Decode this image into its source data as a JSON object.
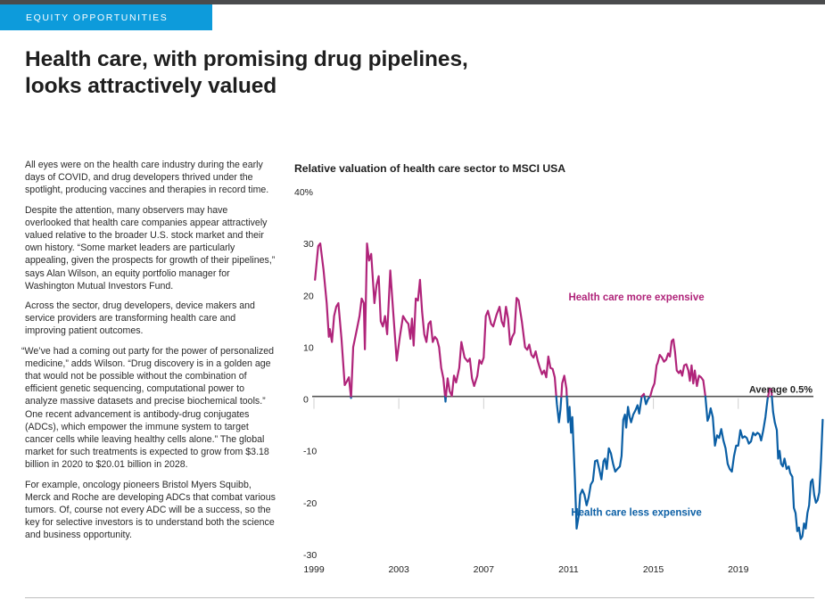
{
  "header": {
    "section_tag": "EQUITY OPPORTUNITIES",
    "headline_line1": "Health care, with promising drug pipelines,",
    "headline_line2": "looks attractively valued"
  },
  "article": {
    "paragraphs": [
      "All eyes were on the health care industry during the early days of COVID, and drug developers thrived under the spotlight, producing vaccines and therapies in record time.",
      "Despite the attention, many observers may have overlooked that health care companies appear attractively valued relative to the broader U.S. stock market and their own history. “Some market leaders are particularly appealing, given the prospects for growth of their pipelines,” says Alan Wilson, an equity portfolio manager for Washington Mutual Investors Fund.",
      "Across the sector, drug developers, device makers and service providers are transforming health care and improving patient outcomes.",
      "“We’ve had a coming out party for the power of personalized medicine,” adds Wilson. “Drug discovery is in a golden age that would not be possible without the combination of efficient genetic sequencing, computational power to analyze massive datasets and precise biochemical tools.” One recent advancement is antibody-drug conjugates (ADCs), which empower the immune system to target cancer cells while leaving healthy cells alone.” The global market for such treatments is expected to grow from $3.18 billion in 2020 to $20.01 billion in 2028.",
      "For example, oncology pioneers Bristol Myers Squibb, Merck and Roche are developing ADCs that combat various tumors. Of, course not every ADC will be a success, so the key for selective investors is to understand both the science and business opportunity."
    ]
  },
  "colors": {
    "section_tag_bg": "#0d9bdb",
    "above_average": "#b0247a",
    "below_average": "#0b5fa5",
    "average_line": "#555555"
  },
  "chart_data": {
    "type": "line",
    "title": "Relative valuation of health care sector to MSCI USA",
    "xlabel": "",
    "ylabel": "",
    "y_unit_label": "40%",
    "ylim": [
      -30,
      40
    ],
    "yticks": [
      40,
      30,
      20,
      10,
      0,
      -10,
      -20,
      -30
    ],
    "ytick_labels": [
      "40%",
      "30",
      "20",
      "10",
      "0",
      "-10",
      "-20",
      "-30"
    ],
    "xlim": [
      1999,
      2022.5
    ],
    "xticks": [
      1999,
      2003,
      2007,
      2011,
      2015,
      2019
    ],
    "xtick_labels": [
      "1999",
      "2003",
      "2007",
      "2011",
      "2015",
      "2019"
    ],
    "grid": false,
    "average": 0.5,
    "average_label": "Average 0.5%",
    "annotations": [
      {
        "text": "Health care more expensive",
        "x": 2014.2,
        "y": 19,
        "color_key": "above_average"
      },
      {
        "text": "Health care less expensive",
        "x": 2014.2,
        "y": -22.5,
        "color_key": "below_average"
      }
    ],
    "series": [
      {
        "name": "Relative valuation (%)",
        "points": [
          [
            1999.05,
            23
          ],
          [
            1999.2,
            29.5
          ],
          [
            1999.3,
            30
          ],
          [
            1999.45,
            25
          ],
          [
            1999.6,
            18.5
          ],
          [
            1999.7,
            12
          ],
          [
            1999.75,
            13.5
          ],
          [
            1999.85,
            11
          ],
          [
            1999.95,
            16
          ],
          [
            2000.05,
            17.8
          ],
          [
            2000.15,
            18.5
          ],
          [
            2000.3,
            11.6
          ],
          [
            2000.45,
            2.7
          ],
          [
            2000.55,
            3.4
          ],
          [
            2000.65,
            4.2
          ],
          [
            2000.75,
            0.2
          ],
          [
            2000.85,
            10
          ],
          [
            2001.0,
            13
          ],
          [
            2001.15,
            16
          ],
          [
            2001.25,
            19.4
          ],
          [
            2001.35,
            18.5
          ],
          [
            2001.4,
            9.6
          ],
          [
            2001.5,
            30
          ],
          [
            2001.6,
            26.7
          ],
          [
            2001.7,
            28
          ],
          [
            2001.85,
            18.5
          ],
          [
            2001.95,
            22
          ],
          [
            2002.05,
            23.7
          ],
          [
            2002.15,
            15
          ],
          [
            2002.25,
            14
          ],
          [
            2002.35,
            16
          ],
          [
            2002.45,
            12.5
          ],
          [
            2002.6,
            24.8
          ],
          [
            2002.75,
            16
          ],
          [
            2002.9,
            7.4
          ],
          [
            2003.05,
            12
          ],
          [
            2003.2,
            16
          ],
          [
            2003.35,
            15
          ],
          [
            2003.45,
            14.5
          ],
          [
            2003.55,
            11.6
          ],
          [
            2003.62,
            15.5
          ],
          [
            2003.7,
            10.3
          ],
          [
            2003.8,
            19.4
          ],
          [
            2003.9,
            19
          ],
          [
            2004.0,
            23
          ],
          [
            2004.1,
            16.8
          ],
          [
            2004.2,
            12.5
          ],
          [
            2004.3,
            11
          ],
          [
            2004.4,
            14.5
          ],
          [
            2004.5,
            15
          ],
          [
            2004.6,
            11
          ],
          [
            2004.7,
            12
          ],
          [
            2004.8,
            11.5
          ],
          [
            2004.9,
            10
          ],
          [
            2005.0,
            6
          ],
          [
            2005.1,
            4
          ],
          [
            2005.2,
            -0.5
          ],
          [
            2005.3,
            4
          ],
          [
            2005.4,
            1.5
          ],
          [
            2005.5,
            0.6
          ],
          [
            2005.6,
            4.5
          ],
          [
            2005.7,
            3.2
          ],
          [
            2005.85,
            6
          ],
          [
            2005.95,
            11
          ],
          [
            2006.1,
            8
          ],
          [
            2006.25,
            7.2
          ],
          [
            2006.35,
            7.8
          ],
          [
            2006.45,
            4
          ],
          [
            2006.55,
            2.5
          ],
          [
            2006.7,
            4.5
          ],
          [
            2006.8,
            7.5
          ],
          [
            2006.9,
            6.8
          ],
          [
            2007.0,
            8
          ],
          [
            2007.1,
            16
          ],
          [
            2007.2,
            17
          ],
          [
            2007.35,
            14.5
          ],
          [
            2007.45,
            14
          ],
          [
            2007.6,
            16.2
          ],
          [
            2007.75,
            17.8
          ],
          [
            2007.85,
            15
          ],
          [
            2007.95,
            14
          ],
          [
            2008.05,
            17.8
          ],
          [
            2008.15,
            15.5
          ],
          [
            2008.25,
            10.5
          ],
          [
            2008.35,
            12
          ],
          [
            2008.45,
            12.8
          ],
          [
            2008.55,
            19.5
          ],
          [
            2008.65,
            19
          ],
          [
            2008.8,
            15
          ],
          [
            2008.95,
            10
          ],
          [
            2009.05,
            9.5
          ],
          [
            2009.15,
            10.5
          ],
          [
            2009.25,
            8.5
          ],
          [
            2009.35,
            8
          ],
          [
            2009.45,
            9.2
          ],
          [
            2009.55,
            7.3
          ],
          [
            2009.65,
            6
          ],
          [
            2009.75,
            4.8
          ],
          [
            2009.85,
            5.5
          ],
          [
            2009.95,
            4.2
          ],
          [
            2010.05,
            8.2
          ],
          [
            2010.15,
            6
          ],
          [
            2010.25,
            5.8
          ],
          [
            2010.35,
            4.2
          ],
          [
            2010.45,
            -1
          ],
          [
            2010.55,
            -4.5
          ],
          [
            2010.62,
            -2
          ],
          [
            2010.7,
            3
          ],
          [
            2010.8,
            4.5
          ],
          [
            2010.9,
            2
          ],
          [
            2010.98,
            -4.5
          ],
          [
            2011.05,
            -1.5
          ],
          [
            2011.12,
            -6.5
          ],
          [
            2011.18,
            -3.5
          ],
          [
            2011.3,
            -15.5
          ],
          [
            2011.38,
            -25
          ],
          [
            2011.48,
            -22.5
          ],
          [
            2011.55,
            -18.5
          ],
          [
            2011.65,
            -17.5
          ],
          [
            2011.75,
            -18.5
          ],
          [
            2011.85,
            -20.5
          ],
          [
            2011.95,
            -19
          ],
          [
            2012.05,
            -16.5
          ],
          [
            2012.15,
            -15.8
          ],
          [
            2012.25,
            -12
          ],
          [
            2012.35,
            -11.8
          ],
          [
            2012.45,
            -13.5
          ],
          [
            2012.55,
            -15.5
          ],
          [
            2012.65,
            -12
          ],
          [
            2012.72,
            -11.5
          ],
          [
            2012.8,
            -13.5
          ],
          [
            2012.9,
            -9.5
          ],
          [
            2013.0,
            -10.5
          ],
          [
            2013.1,
            -12.5
          ],
          [
            2013.2,
            -14
          ],
          [
            2013.3,
            -13.5
          ],
          [
            2013.42,
            -13
          ],
          [
            2013.5,
            -11
          ],
          [
            2013.58,
            -4
          ],
          [
            2013.66,
            -3
          ],
          [
            2013.72,
            -5.5
          ],
          [
            2013.8,
            -1.5
          ],
          [
            2013.88,
            -3.5
          ],
          [
            2013.95,
            -4.5
          ],
          [
            2014.05,
            -3
          ],
          [
            2014.15,
            -2.2
          ],
          [
            2014.25,
            -1.2
          ],
          [
            2014.33,
            -2.8
          ],
          [
            2014.45,
            0.5
          ],
          [
            2014.55,
            1
          ],
          [
            2014.65,
            -1
          ],
          [
            2014.75,
            0
          ],
          [
            2014.85,
            0.5
          ],
          [
            2014.95,
            2
          ],
          [
            2015.05,
            3
          ],
          [
            2015.15,
            6.5
          ],
          [
            2015.2,
            7
          ],
          [
            2015.3,
            8.5
          ],
          [
            2015.4,
            8
          ],
          [
            2015.5,
            7.2
          ],
          [
            2015.6,
            7.6
          ],
          [
            2015.7,
            8.8
          ],
          [
            2015.78,
            8.2
          ],
          [
            2015.86,
            11.2
          ],
          [
            2015.94,
            11.5
          ],
          [
            2016.02,
            9
          ],
          [
            2016.1,
            5.5
          ],
          [
            2016.2,
            5
          ],
          [
            2016.28,
            5.5
          ],
          [
            2016.36,
            4.5
          ],
          [
            2016.45,
            6.5
          ],
          [
            2016.55,
            6.7
          ],
          [
            2016.65,
            5.5
          ],
          [
            2016.72,
            3.5
          ],
          [
            2016.8,
            6.5
          ],
          [
            2016.88,
            3
          ],
          [
            2016.95,
            5.5
          ],
          [
            2017.05,
            2.5
          ],
          [
            2017.15,
            4.5
          ],
          [
            2017.25,
            4.2
          ],
          [
            2017.35,
            3.6
          ],
          [
            2017.45,
            0.5
          ],
          [
            2017.55,
            -4.2
          ],
          [
            2017.62,
            -3.5
          ],
          [
            2017.7,
            -1.8
          ],
          [
            2017.8,
            -3.5
          ],
          [
            2017.9,
            -9
          ],
          [
            2018.0,
            -7
          ],
          [
            2018.1,
            -7.5
          ],
          [
            2018.2,
            -5.8
          ],
          [
            2018.3,
            -8
          ],
          [
            2018.4,
            -9.5
          ],
          [
            2018.5,
            -12.5
          ],
          [
            2018.6,
            -13.5
          ],
          [
            2018.7,
            -14
          ],
          [
            2018.8,
            -11
          ],
          [
            2018.9,
            -9
          ],
          [
            2019.0,
            -9
          ],
          [
            2019.1,
            -6
          ],
          [
            2019.2,
            -7.5
          ],
          [
            2019.3,
            -7.2
          ],
          [
            2019.4,
            -7.5
          ],
          [
            2019.5,
            -8.6
          ],
          [
            2019.6,
            -8.2
          ],
          [
            2019.7,
            -6.5
          ],
          [
            2019.8,
            -7
          ],
          [
            2019.9,
            -6.5
          ],
          [
            2020.0,
            -6.8
          ],
          [
            2020.08,
            -8
          ],
          [
            2020.18,
            -6
          ],
          [
            2020.28,
            -3.5
          ],
          [
            2020.38,
            0
          ],
          [
            2020.48,
            2
          ],
          [
            2020.56,
            1.8
          ],
          [
            2020.64,
            -2.5
          ],
          [
            2020.72,
            -4.5
          ],
          [
            2020.82,
            -6
          ],
          [
            2020.88,
            -11.5
          ],
          [
            2020.95,
            -10
          ],
          [
            2021.02,
            -12.5
          ],
          [
            2021.1,
            -13
          ],
          [
            2021.18,
            -11.5
          ],
          [
            2021.28,
            -13.5
          ],
          [
            2021.38,
            -13
          ],
          [
            2021.45,
            -14.3
          ],
          [
            2021.55,
            -15
          ],
          [
            2021.62,
            -21
          ],
          [
            2021.7,
            -22
          ],
          [
            2021.78,
            -25.5
          ],
          [
            2021.86,
            -24.8
          ],
          [
            2021.94,
            -27
          ],
          [
            2022.02,
            -26.5
          ],
          [
            2022.1,
            -24
          ],
          [
            2022.18,
            -25
          ],
          [
            2022.26,
            -22
          ],
          [
            2022.34,
            -20.5
          ],
          [
            2022.42,
            -16
          ],
          [
            2022.5,
            -15.5
          ],
          [
            2022.58,
            -18.5
          ],
          [
            2022.66,
            -20
          ],
          [
            2022.74,
            -19.5
          ],
          [
            2022.82,
            -18
          ],
          [
            2022.9,
            -12
          ],
          [
            2022.98,
            -4
          ]
        ]
      }
    ]
  }
}
